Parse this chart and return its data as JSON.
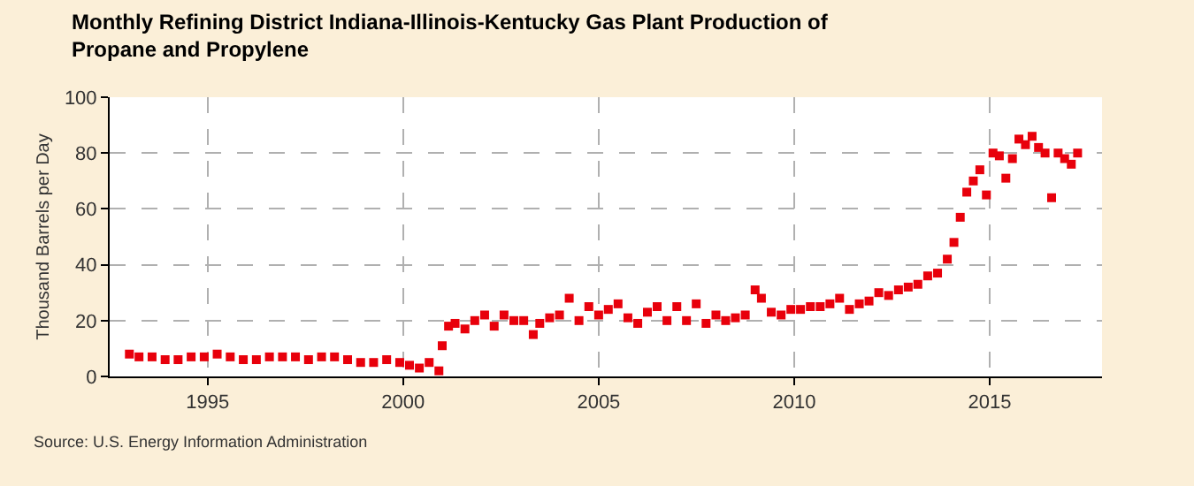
{
  "chart_data": {
    "type": "scatter",
    "title": "Monthly Refining District Indiana-Illinois-Kentucky Gas Plant Production of Propane and Propylene",
    "ylabel": "Thousand Barrels per Day",
    "x": [
      "1993-01",
      "1993-04",
      "1993-08",
      "1993-12",
      "1994-04",
      "1994-08",
      "1994-12",
      "1995-04",
      "1995-08",
      "1995-12",
      "1996-04",
      "1996-08",
      "1996-12",
      "1997-04",
      "1997-08",
      "1997-12",
      "1998-04",
      "1998-08",
      "1998-12",
      "1999-04",
      "1999-08",
      "1999-12",
      "2000-03",
      "2000-06",
      "2000-09",
      "2000-12",
      "2001-01",
      "2001-03",
      "2001-05",
      "2001-08",
      "2001-11",
      "2002-02",
      "2002-05",
      "2002-08",
      "2002-11",
      "2003-02",
      "2003-05",
      "2003-07",
      "2003-10",
      "2004-01",
      "2004-04",
      "2004-07",
      "2004-10",
      "2005-01",
      "2005-04",
      "2005-07",
      "2005-10",
      "2006-01",
      "2006-04",
      "2006-07",
      "2006-10",
      "2007-01",
      "2007-04",
      "2007-07",
      "2007-10",
      "2008-01",
      "2008-04",
      "2008-07",
      "2008-10",
      "2009-01",
      "2009-03",
      "2009-06",
      "2009-09",
      "2009-12",
      "2010-03",
      "2010-06",
      "2010-09",
      "2010-12",
      "2011-03",
      "2011-06",
      "2011-09",
      "2011-12",
      "2012-03",
      "2012-06",
      "2012-09",
      "2012-12",
      "2013-03",
      "2013-06",
      "2013-09",
      "2013-12",
      "2014-02",
      "2014-04",
      "2014-06",
      "2014-08",
      "2014-10",
      "2014-12",
      "2015-02",
      "2015-04",
      "2015-06",
      "2015-08",
      "2015-10",
      "2015-12",
      "2016-02",
      "2016-04",
      "2016-06",
      "2016-08",
      "2016-10",
      "2016-12",
      "2017-02",
      "2017-04"
    ],
    "series": [
      {
        "color": "#e8000b",
        "values": [
          8,
          7,
          7,
          6,
          6,
          7,
          7,
          8,
          7,
          6,
          6,
          7,
          7,
          7,
          6,
          7,
          7,
          6,
          5,
          5,
          6,
          5,
          4,
          3,
          5,
          2,
          11,
          18,
          19,
          17,
          20,
          22,
          18,
          22,
          20,
          20,
          15,
          19,
          21,
          22,
          28,
          20,
          25,
          22,
          24,
          26,
          21,
          19,
          23,
          25,
          20,
          25,
          20,
          26,
          19,
          22,
          20,
          21,
          22,
          31,
          28,
          23,
          22,
          24,
          24,
          25,
          25,
          26,
          28,
          24,
          26,
          27,
          30,
          29,
          31,
          32,
          33,
          36,
          37,
          42,
          48,
          57,
          66,
          70,
          74,
          65,
          80,
          79,
          71,
          78,
          85,
          83,
          86,
          82,
          80,
          64,
          80,
          78,
          76,
          80
        ]
      }
    ],
    "xlim": [
      "1992-07-01",
      "2017-11-15"
    ],
    "ylim": [
      0,
      100
    ],
    "xticks": [
      "1995",
      "2000",
      "2005",
      "2010",
      "2015"
    ],
    "yticks": [
      0,
      20,
      40,
      60,
      80,
      100
    ],
    "grid": true,
    "marker": "square",
    "annotations": [
      "Source: U.S. Energy Information Administration"
    ]
  }
}
